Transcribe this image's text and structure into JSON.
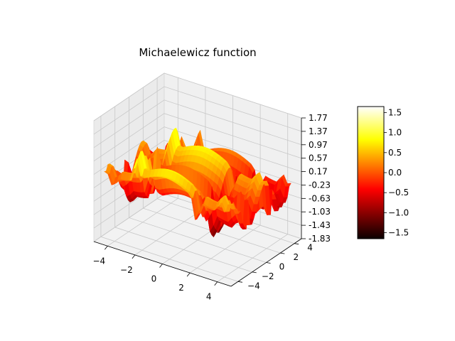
{
  "chart_data": {
    "type": "surface",
    "title": "Michaelewicz function",
    "colormap": "hot",
    "x_ticks": [
      "−4",
      "−2",
      "0",
      "2",
      "4"
    ],
    "x_tick_values": [
      -4,
      -2,
      0,
      2,
      4
    ],
    "y_ticks": [
      "−4",
      "−2",
      "0",
      "2",
      "4"
    ],
    "y_tick_values": [
      -4,
      -2,
      0,
      2,
      4
    ],
    "z_ticks": [
      "-1.83",
      "-1.43",
      "-1.03",
      "-0.63",
      "-0.23",
      "0.17",
      "0.57",
      "0.97",
      "1.37",
      "1.77"
    ],
    "z_tick_values": [
      -1.83,
      -1.43,
      -1.03,
      -0.63,
      -0.23,
      0.17,
      0.57,
      0.97,
      1.37,
      1.77
    ],
    "xlim": [
      -5,
      5
    ],
    "ylim": [
      -5,
      5
    ],
    "zlim": [
      -1.83,
      1.77
    ],
    "colorbar": {
      "range": [
        -1.65,
        1.65
      ],
      "ticks": [
        "−1.5",
        "−1.0",
        "−0.5",
        "0.0",
        "0.5",
        "1.0",
        "1.5"
      ],
      "tick_values": [
        -1.5,
        -1.0,
        -0.5,
        0.0,
        0.5,
        1.0,
        1.5
      ]
    },
    "grid": true
  }
}
